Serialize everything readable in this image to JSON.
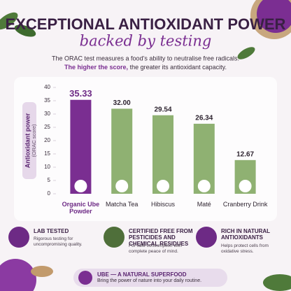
{
  "header": {
    "title": "EXCEPTIONAL ANTIOXIDANT POWER",
    "subtitle": "backed by testing",
    "description": "The ORAC test measures a food’s ability to neutralise free radicals.",
    "highlight": "The higher the score,",
    "description_end": "the greater its antioxidant capacity."
  },
  "chart_data": {
    "type": "bar",
    "ylabel": "Antioxidant power",
    "ylabel_note": "(ORAC score)",
    "categories": [
      "Organic Ube Powder",
      "Matcha Tea",
      "Hibiscus",
      "Maté",
      "Cranberry Drink"
    ],
    "values": [
      35.33,
      32.0,
      29.54,
      26.34,
      12.67
    ],
    "value_labels": [
      "35.33",
      "32.00",
      "29.54",
      "26.34",
      "12.67"
    ],
    "colors": [
      "#7a2e91",
      "#8fb172",
      "#8fb172",
      "#8fb172",
      "#8fb172"
    ],
    "ylim": [
      0,
      40
    ],
    "yticks": [
      0,
      5,
      10,
      15,
      20,
      25,
      30,
      35,
      40
    ]
  },
  "features": [
    {
      "title": "LAB TESTED",
      "text": "Rigorous testing for uncompromising quality."
    },
    {
      "title": "CERTIFIED FREE FROM PESTICIDES AND CHEMICAL RESIDUES",
      "text": "For safe consumption with complete peace of mind."
    },
    {
      "title": "RICH IN NATURAL ANTIOXIDANTS",
      "text": "Helps protect cells from oxidative stress."
    }
  ],
  "footer": {
    "title": "UBE — A NATURAL SUPERFOOD",
    "text": "Bring the power of nature into your daily routine."
  }
}
